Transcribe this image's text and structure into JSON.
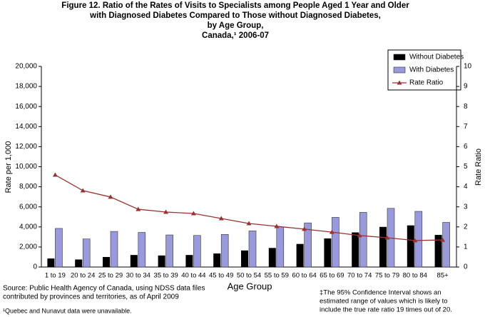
{
  "chart_data": {
    "type": "bar_line",
    "title": [
      "Figure 12. Ratio of the Rates of Visits to Specialists among People Aged 1 Year and Older",
      "with Diagnosed Diabetes Compared to Those without Diagnosed Diabetes,",
      "by Age Group,",
      "Canada,¹ 2006-07"
    ],
    "x_label": "Age Group",
    "y_label": "Rate per 1,000",
    "y2_label": "Rate Ratio",
    "categories": [
      "1 to 19",
      "20 to 24",
      "25 to 29",
      "30 to 34",
      "35 to 39",
      "40 to 44",
      "45 to 49",
      "50 to 54",
      "55 to 59",
      "60 to 64",
      "65 to 69",
      "70 to 74",
      "75 to 79",
      "80 to 84",
      "85+"
    ],
    "series": [
      {
        "name": "Without Diabetes",
        "color": "#000000",
        "values": [
          850,
          750,
          1000,
          1200,
          1150,
          1200,
          1350,
          1650,
          1900,
          2300,
          2850,
          3450,
          4000,
          4150,
          3200
        ]
      },
      {
        "name": "With Diabetes",
        "color": "#9999dd",
        "values": [
          3850,
          2800,
          3550,
          3450,
          3200,
          3150,
          3250,
          3600,
          4000,
          4400,
          4950,
          5450,
          5850,
          5550,
          4450
        ]
      },
      {
        "name": "Rate Ratio",
        "color": "#993333",
        "axis": "y2",
        "values": [
          4.59,
          3.81,
          3.49,
          2.88,
          2.74,
          2.67,
          2.42,
          2.17,
          2.03,
          1.89,
          1.74,
          1.57,
          1.46,
          1.32,
          1.35
        ]
      }
    ],
    "ylim": [
      0,
      20000
    ],
    "yticks": [
      0,
      {
        "value": 2000,
        "label": "2,000"
      },
      {
        "value": 4000,
        "label": "4,000"
      },
      {
        "value": 6000,
        "label": "6,000"
      },
      {
        "value": 8000,
        "label": "8,000"
      },
      {
        "value": 10000,
        "label": "10,000"
      },
      {
        "value": 12000,
        "label": "12,000"
      },
      {
        "value": 14000,
        "label": "14,000"
      },
      {
        "value": 16000,
        "label": "16,000"
      },
      {
        "value": 18000,
        "label": "18,000"
      },
      {
        "value": 20000,
        "label": "20,000"
      }
    ],
    "y2lim": [
      0,
      10
    ],
    "y2ticks": [
      0,
      1,
      2,
      3,
      4,
      5,
      6,
      7,
      8,
      9,
      10
    ],
    "grid": false,
    "legend": "top-right",
    "source": [
      "Source: Public Health Agency of Canada, using NDSS data files",
      "contributed by  provinces and territories, as of April 2009"
    ],
    "footnote": "¹Quebec and Nunavut data were unavailable.",
    "note": [
      "‡The 95% Confidence Interval shows an",
      "estimated range of values which is likely to",
      "include the true rate ratio 19 times out of 20."
    ]
  }
}
